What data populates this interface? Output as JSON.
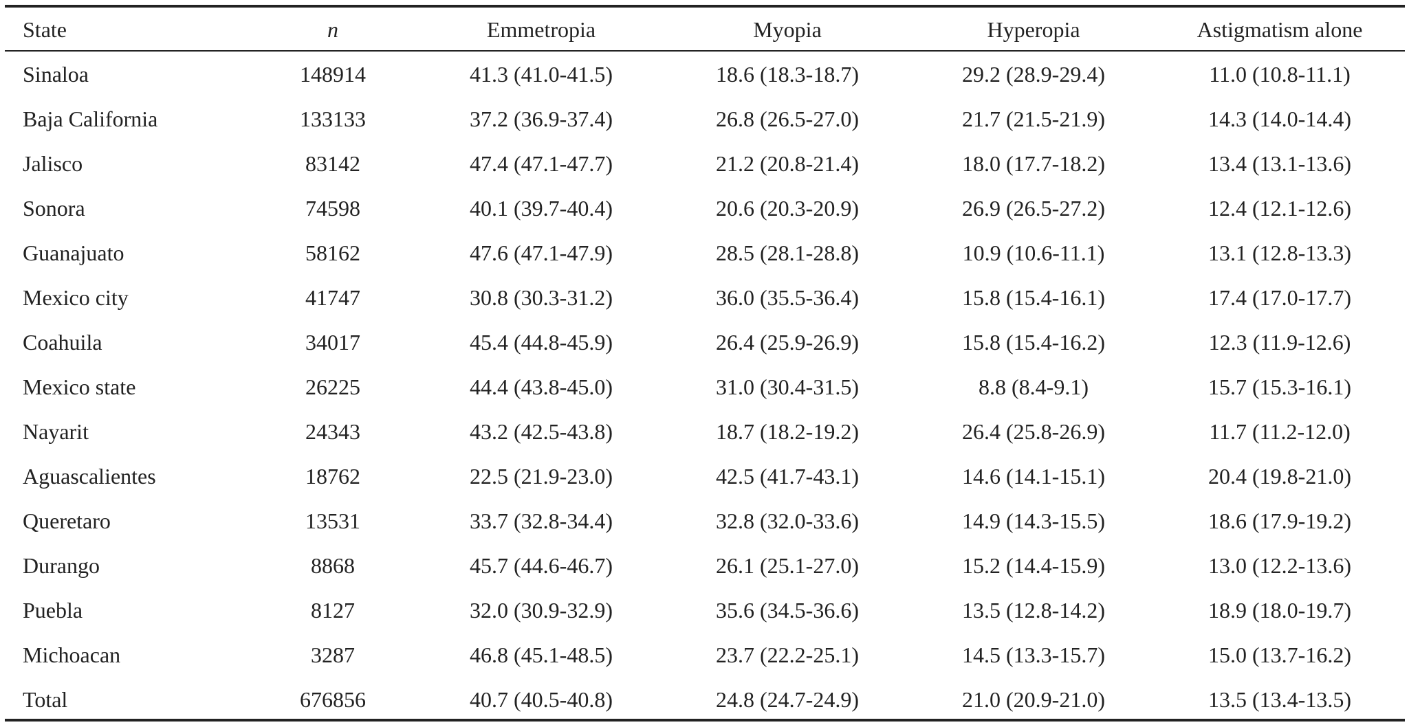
{
  "table": {
    "header": [
      "State",
      "n",
      "Emmetropia",
      "Myopia",
      "Hyperopia",
      "Astigmatism alone"
    ],
    "rows": [
      [
        "Sinaloa",
        "148914",
        "41.3 (41.0-41.5)",
        "18.6 (18.3-18.7)",
        "29.2 (28.9-29.4)",
        "11.0 (10.8-11.1)"
      ],
      [
        "Baja California",
        "133133",
        "37.2 (36.9-37.4)",
        "26.8 (26.5-27.0)",
        "21.7 (21.5-21.9)",
        "14.3 (14.0-14.4)"
      ],
      [
        "Jalisco",
        "83142",
        "47.4 (47.1-47.7)",
        "21.2 (20.8-21.4)",
        "18.0 (17.7-18.2)",
        "13.4 (13.1-13.6)"
      ],
      [
        "Sonora",
        "74598",
        "40.1 (39.7-40.4)",
        "20.6 (20.3-20.9)",
        "26.9 (26.5-27.2)",
        "12.4 (12.1-12.6)"
      ],
      [
        "Guanajuato",
        "58162",
        "47.6 (47.1-47.9)",
        "28.5 (28.1-28.8)",
        "10.9 (10.6-11.1)",
        "13.1 (12.8-13.3)"
      ],
      [
        "Mexico city",
        "41747",
        "30.8 (30.3-31.2)",
        "36.0 (35.5-36.4)",
        "15.8 (15.4-16.1)",
        "17.4 (17.0-17.7)"
      ],
      [
        "Coahuila",
        "34017",
        "45.4 (44.8-45.9)",
        "26.4 (25.9-26.9)",
        "15.8 (15.4-16.2)",
        "12.3 (11.9-12.6)"
      ],
      [
        "Mexico state",
        "26225",
        "44.4 (43.8-45.0)",
        "31.0 (30.4-31.5)",
        "8.8 (8.4-9.1)",
        "15.7 (15.3-16.1)"
      ],
      [
        "Nayarit",
        "24343",
        "43.2 (42.5-43.8)",
        "18.7 (18.2-19.2)",
        "26.4 (25.8-26.9)",
        "11.7 (11.2-12.0)"
      ],
      [
        "Aguascalientes",
        "18762",
        "22.5 (21.9-23.0)",
        "42.5 (41.7-43.1)",
        "14.6 (14.1-15.1)",
        "20.4 (19.8-21.0)"
      ],
      [
        "Queretaro",
        "13531",
        "33.7 (32.8-34.4)",
        "32.8 (32.0-33.6)",
        "14.9 (14.3-15.5)",
        "18.6 (17.9-19.2)"
      ],
      [
        "Durango",
        "8868",
        "45.7 (44.6-46.7)",
        "26.1 (25.1-27.0)",
        "15.2 (14.4-15.9)",
        "13.0 (12.2-13.6)"
      ],
      [
        "Puebla",
        "8127",
        "32.0 (30.9-32.9)",
        "35.6 (34.5-36.6)",
        "13.5 (12.8-14.2)",
        "18.9 (18.0-19.7)"
      ],
      [
        "Michoacan",
        "3287",
        "46.8 (45.1-48.5)",
        "23.7 (22.2-25.1)",
        "14.5 (13.3-15.7)",
        "15.0 (13.7-16.2)"
      ],
      [
        "Total",
        "676856",
        "40.7 (40.5-40.8)",
        "24.8 (24.7-24.9)",
        "21.0 (20.9-21.0)",
        "13.5 (13.4-13.5)"
      ]
    ]
  }
}
